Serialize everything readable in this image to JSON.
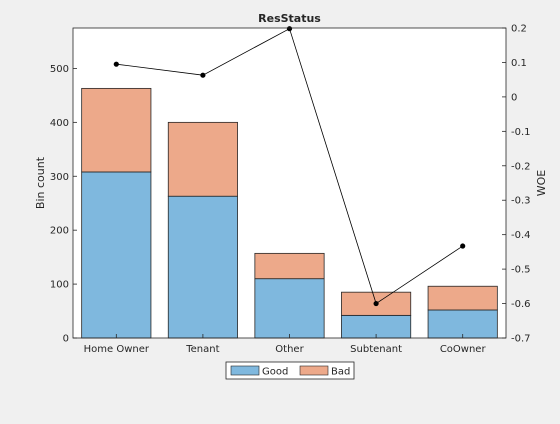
{
  "chart_data": {
    "type": "bar",
    "title": "ResStatus",
    "ylabel": "Bin count",
    "y2label": "WOE",
    "categories": [
      "Home Owner",
      "Tenant",
      "Other",
      "Subtenant",
      "CoOwner"
    ],
    "stacked": true,
    "series": [
      {
        "name": "Good",
        "values": [
          308,
          263,
          110,
          42,
          52
        ],
        "color": "#7fb8de"
      },
      {
        "name": "Bad",
        "values": [
          155,
          137,
          47,
          43,
          44
        ],
        "color": "#eda98a"
      }
    ],
    "line_series": {
      "axis": "right",
      "values": [
        0.095,
        0.063,
        0.198,
        -0.6,
        -0.433
      ],
      "color": "#000000"
    },
    "ylim": [
      0,
      575
    ],
    "yticks": [
      0,
      100,
      200,
      300,
      400,
      500
    ],
    "y2lim": [
      -0.7,
      0.2
    ],
    "y2ticks": [
      0.2,
      0.1,
      0,
      -0.1,
      -0.2,
      -0.3,
      -0.4,
      -0.5,
      -0.6,
      -0.7
    ],
    "grid": false,
    "legend": {
      "placement": "bottom-center",
      "entries": [
        "Good",
        "Bad"
      ]
    }
  }
}
